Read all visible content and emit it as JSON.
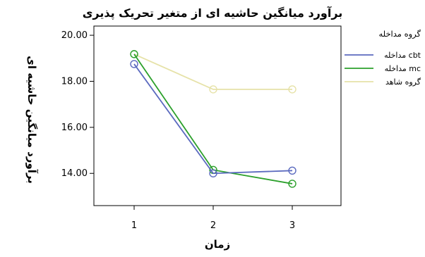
{
  "chart_data": {
    "type": "line",
    "title": "برآورد میانگین حاشیه ای از متغیر تحریک پذیری",
    "xlabel": "زمان",
    "ylabel": "برآورد میانگین حاشیه ای",
    "categories": [
      "1",
      "2",
      "3"
    ],
    "ylim": [
      12.6,
      20.4
    ],
    "yticks": [
      "14.00",
      "16.00",
      "18.00",
      "20.00"
    ],
    "grid": false,
    "legend_title": "گروه مداخله",
    "legend_position": "right",
    "series": [
      {
        "name": "مداخله cbt",
        "color": "#5b6abf",
        "values": [
          18.75,
          14.0,
          14.12
        ]
      },
      {
        "name": "مداخله mc",
        "color": "#2ca02c",
        "values": [
          19.18,
          14.15,
          13.55
        ]
      },
      {
        "name": "گروه شاهد",
        "color": "#e6e2a8",
        "values": [
          19.18,
          17.65,
          17.65
        ]
      }
    ]
  }
}
